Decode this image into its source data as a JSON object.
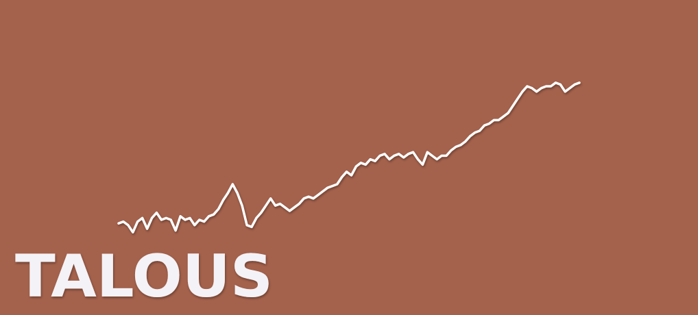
{
  "chart_data": {
    "type": "line",
    "title": "TALOUS",
    "color": "#ffffff",
    "ylim": [
      0,
      100
    ],
    "values": [
      13,
      14,
      12,
      8,
      14,
      16,
      10,
      16,
      19,
      15,
      16,
      15,
      9,
      17,
      15,
      16,
      12,
      15,
      14,
      17,
      18,
      21,
      26,
      30,
      35,
      30,
      23,
      12,
      11,
      16,
      19,
      23,
      27,
      23,
      24,
      22,
      20,
      22,
      24,
      27,
      28,
      27,
      29,
      31,
      33,
      34,
      35,
      39,
      42,
      40,
      45,
      47,
      46,
      49,
      48,
      51,
      52,
      49,
      51,
      52,
      50,
      52,
      53,
      49,
      46,
      53,
      51,
      49,
      51,
      51,
      54,
      56,
      57,
      59,
      62,
      64,
      65,
      68,
      69,
      71,
      71,
      73,
      75,
      79,
      83,
      87,
      90,
      89,
      87,
      89,
      90,
      90,
      92,
      91,
      87,
      89,
      91,
      92
    ]
  }
}
